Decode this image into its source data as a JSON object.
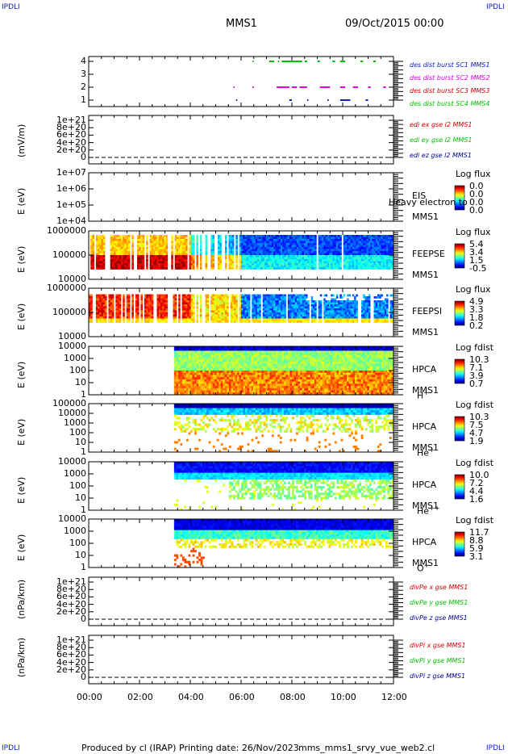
{
  "corner_label": "IPDLI",
  "header": {
    "spacecraft": "MMS1",
    "datetime": "09/Oct/2015 00:00"
  },
  "footer": {
    "produced_by": "Produced by cl (IRAP)",
    "printing_date": "Printing date: 26/Nov/2023",
    "filename": "mms_mms1_srvy_vue_web2.cl"
  },
  "colors": {
    "blue": "#1020c8",
    "magenta": "#e000e0",
    "red": "#d00000",
    "green": "#00c000",
    "dark_blue": "#0000a0"
  },
  "chart_data": [
    {
      "type": "scatter",
      "name": "burst",
      "yticks": [
        "1",
        "2",
        "3",
        "4"
      ],
      "ylim": [
        0.6,
        4.4
      ],
      "legend": [
        {
          "label": "des dist burst SC1 MMS1",
          "color": "#1020c8"
        },
        {
          "label": "des dist burst SC2 MMS2",
          "color": "#e000e0"
        },
        {
          "label": "des dist burst SC3 MMS3",
          "color": "#d00000"
        },
        {
          "label": "des dist burst SC4 MMS4",
          "color": "#00c000"
        }
      ],
      "intervals": [
        {
          "y": 4,
          "ranges": [
            [
              6.45,
              6.5
            ],
            [
              7.1,
              7.3
            ],
            [
              7.45,
              7.5
            ],
            [
              7.6,
              8.4
            ],
            [
              8.5,
              8.6
            ],
            [
              9.0,
              9.1
            ],
            [
              9.6,
              9.7
            ],
            [
              9.9,
              10.1
            ],
            [
              10.7,
              10.8
            ],
            [
              11.2,
              11.3
            ]
          ]
        },
        {
          "y": 2,
          "ranges": [
            [
              5.7,
              5.75
            ],
            [
              6.45,
              6.5
            ],
            [
              7.4,
              7.9
            ],
            [
              8.0,
              8.2
            ],
            [
              8.3,
              8.6
            ],
            [
              9.1,
              9.5
            ],
            [
              9.9,
              10.1
            ],
            [
              10.4,
              10.6
            ],
            [
              11.0,
              11.1
            ],
            [
              11.6,
              11.7
            ]
          ]
        },
        {
          "y": 1,
          "ranges": [
            [
              5.8,
              5.85
            ],
            [
              7.9,
              8.0
            ],
            [
              8.6,
              8.65
            ],
            [
              9.4,
              9.45
            ],
            [
              9.9,
              10.3
            ],
            [
              10.9,
              11.0
            ]
          ]
        }
      ]
    },
    {
      "type": "line",
      "name": "edi-e-field",
      "ylabel": "(mV/m)",
      "yticks": [
        "0",
        "2e+20",
        "4e+20",
        "6e+20",
        "8e+20",
        "1e+21"
      ],
      "legend": [
        {
          "label": "edi ex gse l2 MMS1",
          "color": "#d00000"
        },
        {
          "label": "edi ey gse l2 MMS1",
          "color": "#00c000"
        },
        {
          "label": "edi ez gse l2 MMS1",
          "color": "#0000a0"
        }
      ]
    },
    {
      "type": "heatmap",
      "name": "eis",
      "ylabel": "E (eV)",
      "yticks": [
        "1e+04",
        "1e+05",
        "1e+06",
        "1e+07"
      ],
      "instrument": "EIS",
      "spacecraft": "MMS1",
      "overlap_text": "Heavy electron to",
      "colorbar_title": "Log flux",
      "colorbar_ticks": [
        "0.0",
        "0.0",
        "0.0",
        "0.0"
      ]
    },
    {
      "type": "heatmap",
      "name": "feepse",
      "ylabel": "E (eV)",
      "yticks": [
        "10000",
        "100000",
        "1000000"
      ],
      "instrument": "FEEPSE",
      "spacecraft": "MMS1",
      "colorbar_title": "Log flux",
      "colorbar_ticks": [
        "5.4",
        "3.4",
        "1.5",
        "-0.5"
      ]
    },
    {
      "type": "heatmap",
      "name": "feepsi",
      "ylabel": "E (eV)",
      "yticks": [
        "10000",
        "100000",
        "1000000"
      ],
      "instrument": "FEEPSI",
      "spacecraft": "MMS1",
      "colorbar_title": "Log flux",
      "colorbar_ticks": [
        "4.9",
        "3.3",
        "1.8",
        "0.2"
      ]
    },
    {
      "type": "heatmap",
      "name": "hpca-h",
      "ylabel": "E (eV)",
      "yticks": [
        "1",
        "10",
        "100",
        "1000",
        "10000"
      ],
      "instrument": "HPCA",
      "spacecraft": "MMS1",
      "species": "H",
      "charge": "+",
      "colorbar_title": "Log fdist",
      "colorbar_ticks": [
        "10.3",
        "7.1",
        "3.9",
        "0.7"
      ]
    },
    {
      "type": "heatmap",
      "name": "hpca-he",
      "ylabel": "E (eV)",
      "yticks": [
        "1",
        "10",
        "100",
        "1000",
        "10000",
        "100000"
      ],
      "instrument": "HPCA",
      "spacecraft": "MMS1",
      "species": "He",
      "charge": "+",
      "colorbar_title": "Log fdist",
      "colorbar_ticks": [
        "10.3",
        "7.5",
        "4.7",
        "1.9"
      ]
    },
    {
      "type": "heatmap",
      "name": "hpca-he2",
      "ylabel": "E (eV)",
      "yticks": [
        "1",
        "10",
        "100",
        "1000",
        "10000"
      ],
      "instrument": "HPCA",
      "spacecraft": "MMS1",
      "species": "He",
      "charge": "++",
      "colorbar_title": "Log fdist",
      "colorbar_ticks": [
        "10.0",
        "7.2",
        "4.4",
        "1.6"
      ]
    },
    {
      "type": "heatmap",
      "name": "hpca-o",
      "ylabel": "E (eV)",
      "yticks": [
        "1",
        "10",
        "100",
        "1000",
        "10000"
      ],
      "instrument": "HPCA",
      "spacecraft": "MMS1",
      "species": "O",
      "charge": "+",
      "colorbar_title": "Log fdist",
      "colorbar_ticks": [
        "11.7",
        "8.8",
        "5.9",
        "3.1"
      ]
    },
    {
      "type": "line",
      "name": "divpe",
      "ylabel": "(nPa/km)",
      "yticks": [
        "0",
        "2e+20",
        "4e+20",
        "6e+20",
        "8e+20",
        "1e+21"
      ],
      "legend": [
        {
          "label": "divPe x gse MMS1",
          "color": "#d00000"
        },
        {
          "label": "divPe y gse MMS1",
          "color": "#00c000"
        },
        {
          "label": "divPe z gse MMS1",
          "color": "#0000a0"
        }
      ]
    },
    {
      "type": "line",
      "name": "divpi",
      "ylabel": "(nPa/km)",
      "yticks": [
        "0",
        "2e+20",
        "4e+20",
        "6e+20",
        "8e+20",
        "1e+21"
      ],
      "legend": [
        {
          "label": "divPi x gse MMS1",
          "color": "#d00000"
        },
        {
          "label": "divPi y gse MMS1",
          "color": "#00c000"
        },
        {
          "label": "divPi z gse MMS1",
          "color": "#0000a0"
        }
      ]
    }
  ],
  "time_axis": {
    "ticks": [
      "00:00",
      "02:00",
      "04:00",
      "06:00",
      "08:00",
      "10:00",
      "12:00"
    ],
    "xlim": [
      0,
      12
    ]
  }
}
